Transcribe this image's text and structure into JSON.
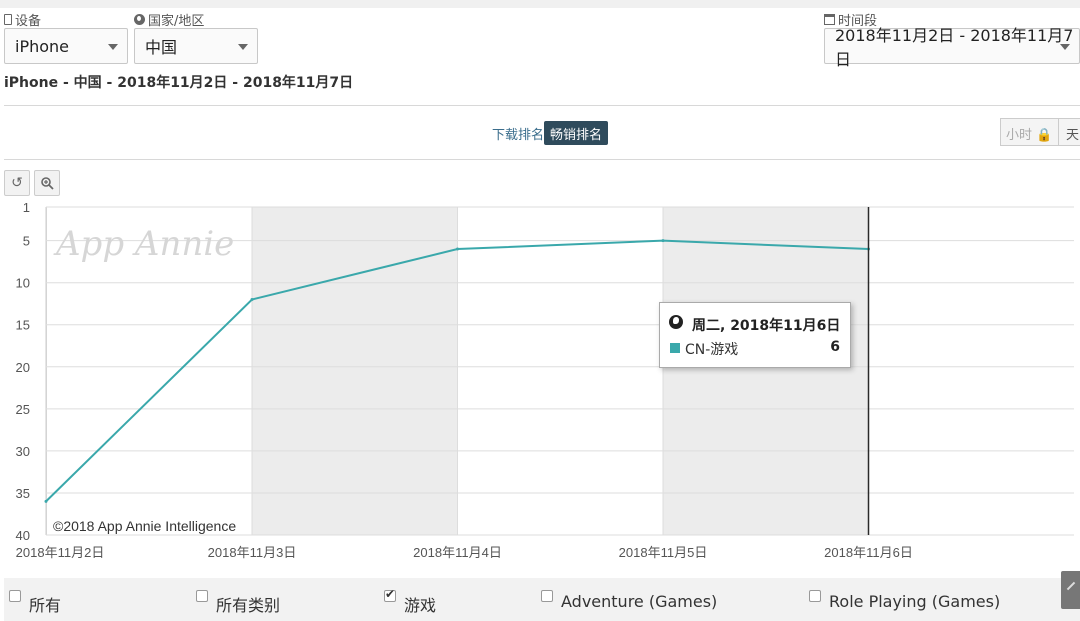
{
  "filters": {
    "device_label": "设备",
    "device_value": "iPhone",
    "country_label": "国家/地区",
    "country_value": "中国",
    "period_label": "时间段",
    "period_value": "2018年11月2日 - 2018年11月7日"
  },
  "subtitle": "iPhone - 中国 - 2018年11月2日 - 2018年11月7日",
  "rank_toggle": {
    "download": "下载排名",
    "grossing": "畅销排名",
    "active": "grossing"
  },
  "granularity": {
    "hour": "小时 🔒",
    "day": "天"
  },
  "toolbar": {
    "reset_icon": "reset-zoom-icon",
    "zoom_icon": "zoom-icon"
  },
  "chart_data": {
    "type": "line",
    "title": "",
    "xlabel": "",
    "ylabel": "",
    "y_reversed": true,
    "ylim": [
      1,
      40
    ],
    "y_ticks": [
      "1",
      "5",
      "10",
      "15",
      "20",
      "25",
      "30",
      "35",
      "40"
    ],
    "x_ticks": [
      "2018年11月2日",
      "2018年11月3日",
      "2018年11月4日",
      "2018年11月5日",
      "2018年11月6日"
    ],
    "grid": true,
    "watermark": "App Annie",
    "credit": "©2018 App Annie Intelligence",
    "series": [
      {
        "name": "CN-游戏",
        "color": "#3aa8ab",
        "x": [
          "2018年11月2日",
          "2018年11月3日",
          "2018年11月4日",
          "2018年11月5日",
          "2018年11月6日"
        ],
        "values": [
          36,
          12,
          6,
          5,
          6
        ]
      }
    ],
    "highlight_x": "2018年11月6日"
  },
  "tooltip": {
    "date": "周二, 2018年11月6日",
    "series": "CN-游戏",
    "value": "6",
    "color": "#3aa8ab"
  },
  "categories": [
    {
      "label": "所有",
      "checked": false
    },
    {
      "label": "所有类别",
      "checked": false
    },
    {
      "label": "游戏",
      "checked": true
    },
    {
      "label": "Adventure (Games)",
      "checked": false
    },
    {
      "label": "Role Playing (Games)",
      "checked": false
    }
  ]
}
